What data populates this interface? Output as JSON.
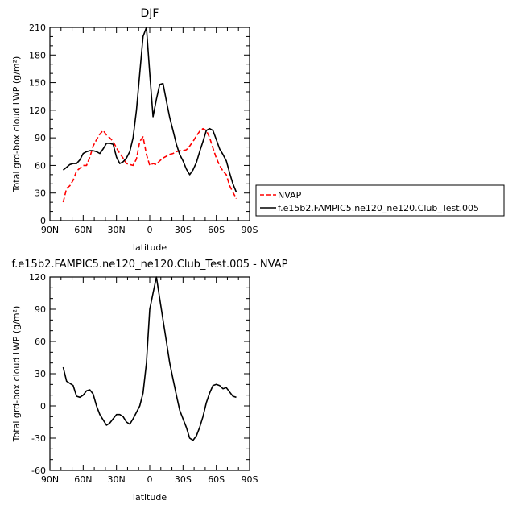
{
  "chart_data": [
    {
      "type": "line",
      "title": "DJF",
      "xlabel": "latitude",
      "ylabel": "Total grd-box cloud LWP (g/m²)",
      "xlim": [
        -90,
        90
      ],
      "ylim": [
        0,
        210
      ],
      "x_ticks": [
        {
          "value": -90,
          "label": "90N"
        },
        {
          "value": -60,
          "label": "60N"
        },
        {
          "value": -30,
          "label": "30N"
        },
        {
          "value": 0,
          "label": "0"
        },
        {
          "value": 30,
          "label": "30S"
        },
        {
          "value": 60,
          "label": "60S"
        },
        {
          "value": 90,
          "label": "90S"
        }
      ],
      "y_ticks": [
        0,
        30,
        60,
        90,
        120,
        150,
        180,
        210
      ],
      "legend_position": "right",
      "series": [
        {
          "name": "NVAP",
          "color": "#ff0000",
          "dash": "dashed",
          "x": [
            -78,
            -75,
            -72,
            -69,
            -66,
            -63,
            -60,
            -57,
            -54,
            -51,
            -48,
            -45,
            -42,
            -39,
            -36,
            -33,
            -30,
            -27,
            -24,
            -21,
            -18,
            -15,
            -12,
            -9,
            -6,
            -3,
            0,
            3,
            6,
            9,
            12,
            15,
            18,
            21,
            24,
            27,
            30,
            33,
            36,
            39,
            42,
            45,
            48,
            51,
            54,
            57,
            60,
            63,
            66,
            69,
            72,
            75,
            78
          ],
          "y": [
            20,
            35,
            38,
            44,
            54,
            57,
            60,
            60,
            69,
            81,
            88,
            94,
            98,
            93,
            90,
            86,
            79,
            73,
            68,
            62,
            61,
            60,
            67,
            86,
            91,
            72,
            60,
            62,
            61,
            65,
            68,
            70,
            72,
            73,
            75,
            76,
            76,
            77,
            81,
            86,
            92,
            97,
            100,
            98,
            90,
            79,
            68,
            60,
            54,
            50,
            38,
            31,
            24
          ]
        },
        {
          "name": "f.e15b2.FAMPIC5.ne120_ne120.Club_Test.005",
          "color": "#000000",
          "dash": "solid",
          "x": [
            -78,
            -75,
            -72,
            -69,
            -66,
            -63,
            -60,
            -57,
            -54,
            -51,
            -48,
            -45,
            -42,
            -39,
            -36,
            -33,
            -30,
            -27,
            -24,
            -21,
            -18,
            -15,
            -12,
            -9,
            -6,
            -3,
            0,
            3,
            6,
            9,
            12,
            15,
            18,
            21,
            24,
            27,
            30,
            33,
            36,
            39,
            42,
            45,
            48,
            51,
            54,
            57,
            60,
            63,
            66,
            69,
            72,
            75,
            78
          ],
          "y": [
            55,
            58,
            61,
            62,
            62,
            66,
            73,
            75,
            76,
            76,
            75,
            73,
            78,
            84,
            84,
            83,
            69,
            62,
            64,
            68,
            75,
            90,
            120,
            160,
            200,
            210,
            160,
            113,
            132,
            148,
            149,
            130,
            112,
            98,
            83,
            72,
            65,
            56,
            50,
            55,
            63,
            75,
            86,
            98,
            100,
            98,
            88,
            78,
            72,
            65,
            52,
            40,
            31
          ]
        }
      ]
    },
    {
      "type": "line",
      "title": "f.e15b2.FAMPIC5.ne120_ne120.Club_Test.005 - NVAP",
      "xlabel": "latitude",
      "ylabel": "Total grd-box cloud LWP (g/m²)",
      "xlim": [
        -90,
        90
      ],
      "ylim": [
        -60,
        120
      ],
      "x_ticks": [
        {
          "value": -90,
          "label": "90N"
        },
        {
          "value": -60,
          "label": "60N"
        },
        {
          "value": -30,
          "label": "30N"
        },
        {
          "value": 0,
          "label": "0"
        },
        {
          "value": 30,
          "label": "30S"
        },
        {
          "value": 60,
          "label": "60S"
        },
        {
          "value": 90,
          "label": "90S"
        }
      ],
      "y_ticks": [
        -60,
        -30,
        0,
        30,
        60,
        90,
        120
      ],
      "series": [
        {
          "color": "#000000",
          "dash": "solid",
          "x": [
            -78,
            -75,
            -72,
            -69,
            -66,
            -63,
            -60,
            -57,
            -54,
            -51,
            -48,
            -45,
            -42,
            -39,
            -36,
            -33,
            -30,
            -27,
            -24,
            -21,
            -18,
            -15,
            -12,
            -9,
            -6,
            -3,
            0,
            3,
            6,
            9,
            12,
            15,
            18,
            21,
            24,
            27,
            30,
            33,
            36,
            39,
            42,
            45,
            48,
            51,
            54,
            57,
            60,
            63,
            66,
            69,
            72,
            75,
            78
          ],
          "y": [
            36,
            23,
            21,
            19,
            9,
            8,
            10,
            14,
            15,
            11,
            0,
            -8,
            -13,
            -18,
            -16,
            -12,
            -8,
            -8,
            -10,
            -15,
            -17,
            -12,
            -6,
            0,
            12,
            40,
            90,
            105,
            120,
            100,
            80,
            60,
            40,
            25,
            10,
            -4,
            -12,
            -20,
            -30,
            -32,
            -28,
            -20,
            -10,
            3,
            12,
            19,
            20,
            19,
            16,
            17,
            13,
            9,
            8
          ]
        }
      ]
    }
  ]
}
